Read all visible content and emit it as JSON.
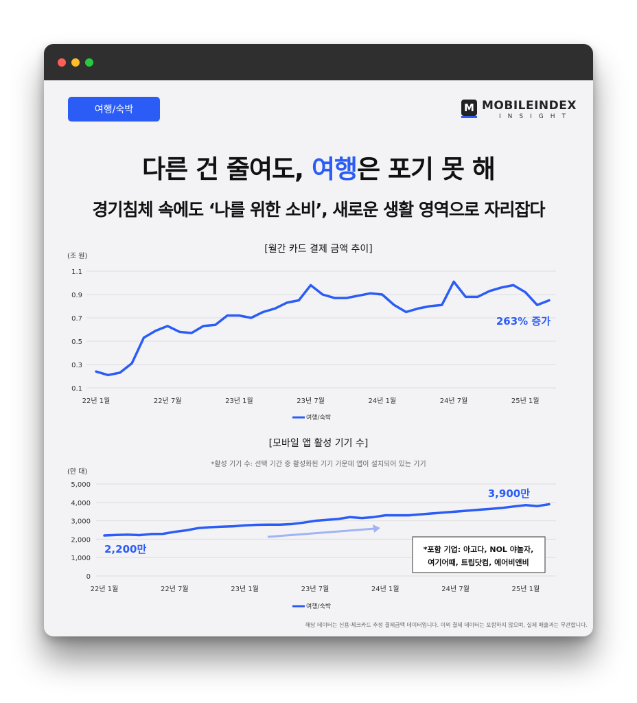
{
  "category_badge": "여행/숙박",
  "logo": {
    "letter": "M",
    "word": "MOBILEINDEX",
    "sub": "INSIGHT"
  },
  "headline": {
    "pre": "다른 건 줄여도, ",
    "highlight": "여행",
    "post": "은 포기 못 해"
  },
  "subheadline": "경기침체 속에도 ‘나를 위한 소비’, 새로운 생활 영역으로 자리잡다",
  "footnote": "해당 데이터는 신용·체크카드 추정 결제금액 데이터입니다. 이외 결제 데이터는 포함하지 않으며, 실제 매출과는 무관합니다.",
  "colors": {
    "accent": "#2b5cf5",
    "arrow": "#9fb3f5"
  },
  "chart_data": [
    {
      "type": "line",
      "title": "[월간 카드 결제 금액 추이]",
      "unit_label": "(조 원)",
      "ylim": [
        0.1,
        1.1
      ],
      "y_ticks": [
        "1.1",
        "0.9",
        "0.7",
        "0.5",
        "0.3",
        "0.1"
      ],
      "x_ticks": [
        "22년 1월",
        "22년 7월",
        "23년 1월",
        "23년 7월",
        "24년 1월",
        "24년 7월",
        "25년 1월"
      ],
      "x_tick_index": [
        0,
        6,
        12,
        18,
        24,
        30,
        36
      ],
      "series": [
        {
          "name": "여행/숙박",
          "values": [
            0.24,
            0.21,
            0.23,
            0.31,
            0.53,
            0.59,
            0.63,
            0.58,
            0.57,
            0.63,
            0.64,
            0.72,
            0.72,
            0.7,
            0.75,
            0.78,
            0.83,
            0.85,
            0.98,
            0.9,
            0.87,
            0.87,
            0.89,
            0.91,
            0.9,
            0.81,
            0.75,
            0.78,
            0.8,
            0.81,
            1.01,
            0.88,
            0.88,
            0.93,
            0.96,
            0.98,
            0.92,
            0.81,
            0.85
          ]
        }
      ],
      "annotation": "263% 증가"
    },
    {
      "type": "line",
      "title": "[모바일 앱 활성 기기 수]",
      "note": "*활성 기기 수: 선택 기간 중 활성화된 기기 가운데 앱이 설치되어 있는 기기",
      "unit_label": "(만 대)",
      "ylim": [
        0,
        5000
      ],
      "y_ticks": [
        "5,000",
        "4,000",
        "3,000",
        "2,000",
        "1,000",
        "0"
      ],
      "x_ticks": [
        "22년 1월",
        "22년 7월",
        "23년 1월",
        "23년 7월",
        "24년 1월",
        "24년 7월",
        "25년 1월"
      ],
      "x_tick_index": [
        0,
        6,
        12,
        18,
        24,
        30,
        36
      ],
      "series": [
        {
          "name": "여행/숙박",
          "values": [
            2200,
            2230,
            2250,
            2220,
            2280,
            2290,
            2400,
            2480,
            2600,
            2650,
            2680,
            2700,
            2750,
            2780,
            2790,
            2790,
            2820,
            2900,
            3000,
            3050,
            3100,
            3200,
            3150,
            3200,
            3300,
            3300,
            3300,
            3350,
            3400,
            3450,
            3500,
            3550,
            3600,
            3650,
            3700,
            3780,
            3850,
            3800,
            3900
          ]
        }
      ],
      "start_label": "2,200만",
      "end_label": "3,900만",
      "legend_box": [
        "*포함 기업: 아고다, NOL 야놀자,",
        "여기어때, 트립닷컴, 에어비앤비"
      ]
    }
  ]
}
